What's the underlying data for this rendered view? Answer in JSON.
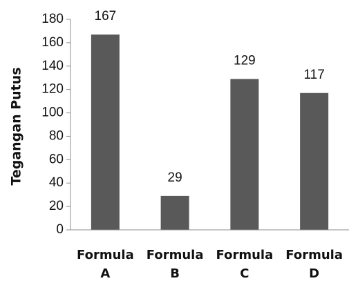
{
  "chart_data": {
    "type": "bar",
    "title": "",
    "xlabel": "",
    "ylabel": "Tegangan Putus",
    "categories": [
      [
        "Formula",
        "A"
      ],
      [
        "Formula",
        "B"
      ],
      [
        "Formula",
        "C"
      ],
      [
        "Formula",
        "D"
      ]
    ],
    "values": [
      167,
      29,
      129,
      117
    ],
    "data_labels": [
      "167",
      "29",
      "129",
      "117"
    ],
    "ylim": [
      0,
      180
    ],
    "yticks": [
      0,
      20,
      40,
      60,
      80,
      100,
      120,
      140,
      160,
      180
    ],
    "grid": false,
    "legend": "none",
    "bar_color": "#595959",
    "axis_color": "#8c8c8c"
  }
}
